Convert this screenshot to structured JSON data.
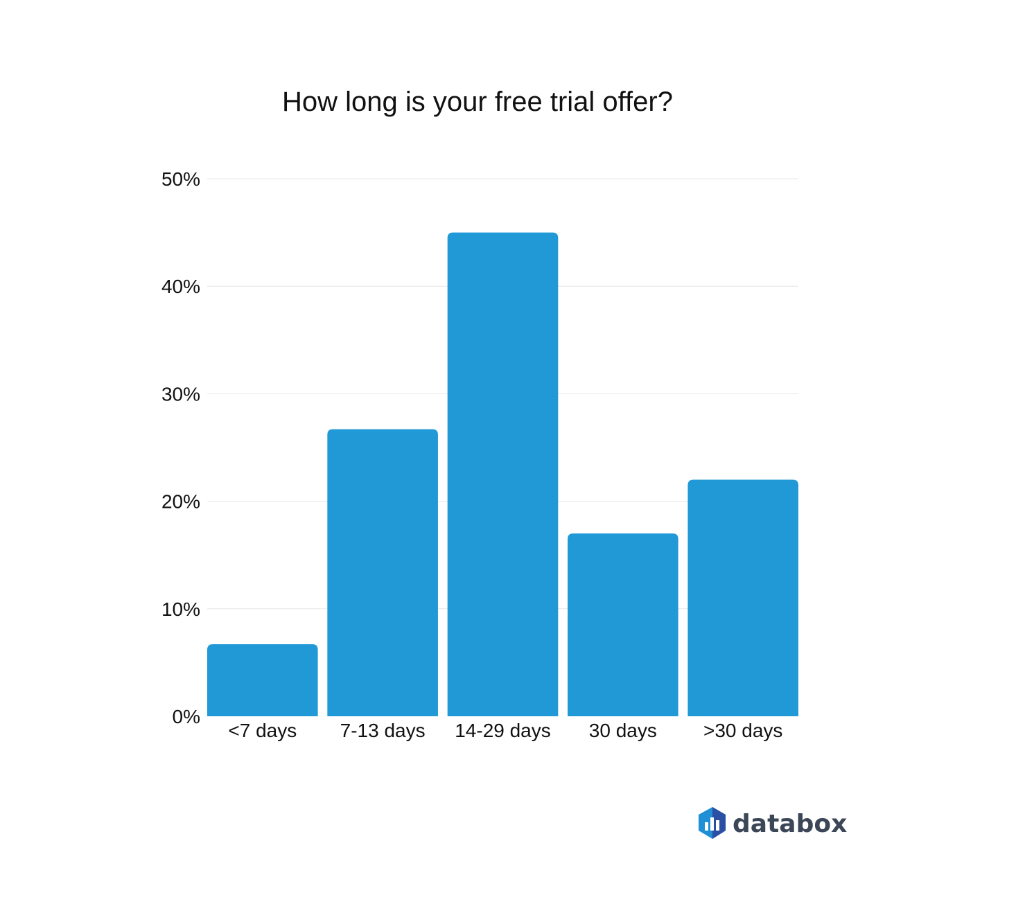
{
  "chart_data": {
    "type": "bar",
    "title": "How long is your free trial offer?",
    "xlabel": "",
    "ylabel": "",
    "categories": [
      "<7 days",
      "7-13 days",
      "14-29 days",
      "30 days",
      ">30 days"
    ],
    "values": [
      6.7,
      26.7,
      45.0,
      17.0,
      22.0
    ],
    "ylim": [
      0,
      50
    ],
    "yticks": [
      0,
      10,
      20,
      30,
      40,
      50
    ],
    "ytick_labels": [
      "0%",
      "10%",
      "20%",
      "30%",
      "40%",
      "50%"
    ],
    "grid": true,
    "legend": "none",
    "bar_color": "#2099d6"
  },
  "brand": {
    "name": "databox",
    "logo_icon": "databox-hexagon-logo",
    "logo_colors": [
      "#1f8fd6",
      "#2a4fa3"
    ]
  }
}
